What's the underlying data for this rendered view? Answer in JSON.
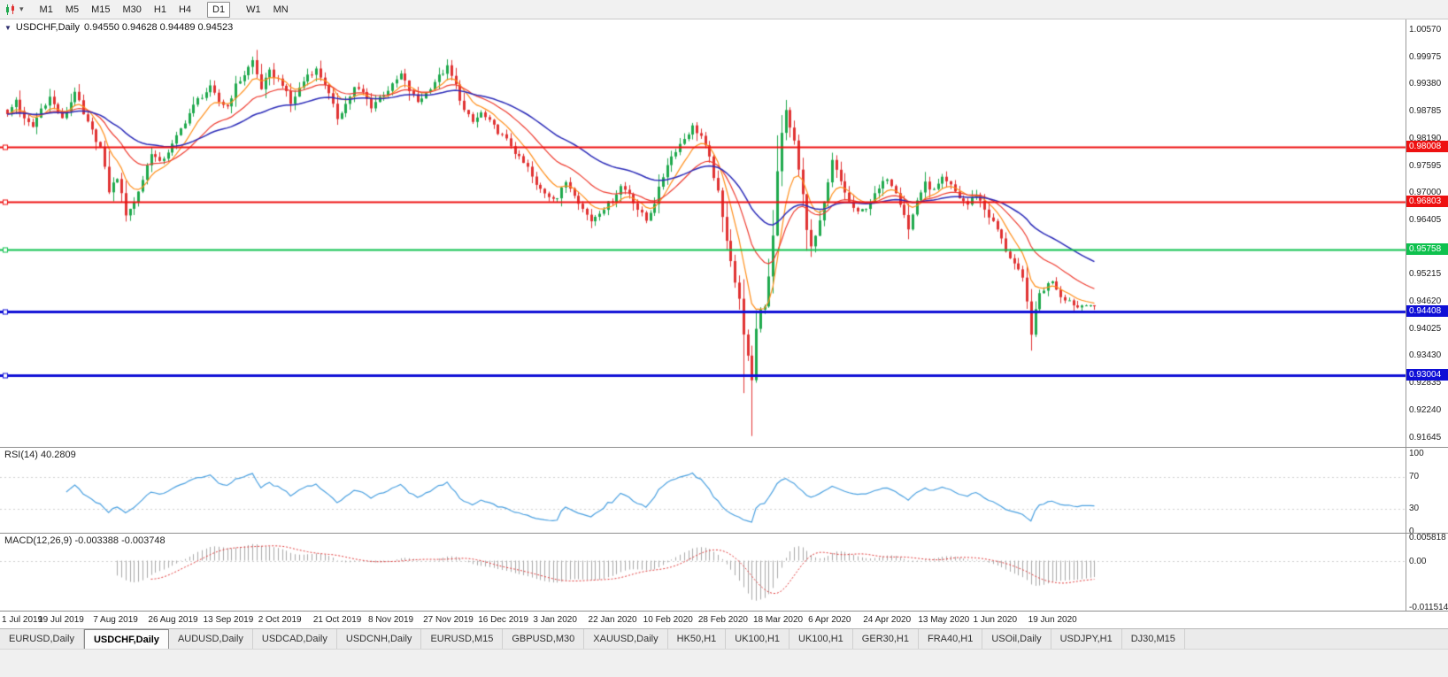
{
  "toolbar": {
    "timeframes": [
      "M1",
      "M5",
      "M15",
      "M30",
      "H1",
      "H4",
      "D1",
      "W1",
      "MN"
    ],
    "active_timeframe": "D1"
  },
  "chart": {
    "symbol": "USDCHF,Daily",
    "ohlc": "0.94550 0.94628 0.94489 0.94523"
  },
  "tabs": {
    "items": [
      "EURUSD,Daily",
      "USDCHF,Daily",
      "AUDUSD,Daily",
      "USDCAD,Daily",
      "USDCNH,Daily",
      "EURUSD,M15",
      "GBPUSD,M30",
      "XAUUSD,Daily",
      "HK50,H1",
      "UK100,H1",
      "UK100,H1",
      "GER30,H1",
      "FRA40,H1",
      "USOil,Daily",
      "USDJPY,H1",
      "DJ30,M15"
    ],
    "active_index": 1
  },
  "chart_data": {
    "type": "candlestick",
    "symbol": "USDCHF",
    "timeframe": "Daily",
    "last_ohlc": {
      "open": 0.9455,
      "high": 0.94628,
      "low": 0.94489,
      "close": 0.94523
    },
    "n_candles": 258,
    "candles_per_tick": 13,
    "x_tick_labels": [
      "1 Jul 2019",
      "19 Jul 2019",
      "7 Aug 2019",
      "26 Aug 2019",
      "13 Sep 2019",
      "2 Oct 2019",
      "21 Oct 2019",
      "8 Nov 2019",
      "27 Nov 2019",
      "16 Dec 2019",
      "3 Jan 2020",
      "22 Jan 2020",
      "10 Feb 2020",
      "28 Feb 2020",
      "18 Mar 2020",
      "6 Apr 2020",
      "24 Apr 2020",
      "13 May 2020",
      "1 Jun 2020",
      "19 Jun 2020"
    ],
    "y_axis": {
      "top_value": 1.0057,
      "step": 0.00595,
      "labels": [
        "1.00570",
        "0.99975",
        "0.99380",
        "0.98785",
        "0.98190",
        "0.97595",
        "0.97000",
        "0.96405",
        "0.95810",
        "0.95215",
        "0.94620",
        "0.94025",
        "0.93430",
        "0.92835",
        "0.92240",
        "0.91645"
      ]
    },
    "up_color": "#1fa94d",
    "down_color": "#e03232",
    "close_anchors": [
      [
        0,
        0.987
      ],
      [
        2,
        0.9905
      ],
      [
        4,
        0.986
      ],
      [
        6,
        0.9845
      ],
      [
        8,
        0.9885
      ],
      [
        10,
        0.991
      ],
      [
        13,
        0.986
      ],
      [
        15,
        0.99
      ],
      [
        16,
        0.9925
      ],
      [
        18,
        0.987
      ],
      [
        20,
        0.9835
      ],
      [
        22,
        0.98
      ],
      [
        24,
        0.9705
      ],
      [
        26,
        0.9735
      ],
      [
        28,
        0.9655
      ],
      [
        30,
        0.968
      ],
      [
        32,
        0.973
      ],
      [
        34,
        0.979
      ],
      [
        36,
        0.9765
      ],
      [
        39,
        0.9805
      ],
      [
        41,
        0.984
      ],
      [
        43,
        0.9875
      ],
      [
        45,
        0.9905
      ],
      [
        48,
        0.993
      ],
      [
        50,
        0.99
      ],
      [
        52,
        0.989
      ],
      [
        54,
        0.9935
      ],
      [
        56,
        0.996
      ],
      [
        58,
        0.999
      ],
      [
        60,
        0.993
      ],
      [
        62,
        0.9965
      ],
      [
        65,
        0.994
      ],
      [
        67,
        0.9895
      ],
      [
        69,
        0.993
      ],
      [
        71,
        0.996
      ],
      [
        73,
        0.997
      ],
      [
        75,
        0.994
      ],
      [
        78,
        0.9865
      ],
      [
        80,
        0.9895
      ],
      [
        82,
        0.993
      ],
      [
        84,
        0.992
      ],
      [
        86,
        0.989
      ],
      [
        88,
        0.991
      ],
      [
        91,
        0.9935
      ],
      [
        93,
        0.996
      ],
      [
        95,
        0.9925
      ],
      [
        97,
        0.99
      ],
      [
        99,
        0.992
      ],
      [
        101,
        0.9945
      ],
      [
        104,
        0.9975
      ],
      [
        106,
        0.9935
      ],
      [
        108,
        0.988
      ],
      [
        110,
        0.9855
      ],
      [
        112,
        0.9875
      ],
      [
        114,
        0.9855
      ],
      [
        117,
        0.9825
      ],
      [
        119,
        0.9805
      ],
      [
        121,
        0.9775
      ],
      [
        123,
        0.9755
      ],
      [
        125,
        0.9715
      ],
      [
        128,
        0.9695
      ],
      [
        130,
        0.969
      ],
      [
        132,
        0.9725
      ],
      [
        134,
        0.97
      ],
      [
        136,
        0.9665
      ],
      [
        138,
        0.964
      ],
      [
        140,
        0.966
      ],
      [
        143,
        0.9685
      ],
      [
        145,
        0.9715
      ],
      [
        147,
        0.97
      ],
      [
        149,
        0.9665
      ],
      [
        151,
        0.964
      ],
      [
        153,
        0.968
      ],
      [
        156,
        0.9765
      ],
      [
        158,
        0.9795
      ],
      [
        160,
        0.982
      ],
      [
        162,
        0.9845
      ],
      [
        164,
        0.9825
      ],
      [
        166,
        0.9775
      ],
      [
        168,
        0.97
      ],
      [
        169,
        0.9645
      ],
      [
        170,
        0.96
      ],
      [
        171,
        0.9555
      ],
      [
        172,
        0.9505
      ],
      [
        173,
        0.9465
      ],
      [
        174,
        0.9395
      ],
      [
        175,
        0.934
      ],
      [
        176,
        0.9285
      ],
      [
        177,
        0.9405
      ],
      [
        178,
        0.9445
      ],
      [
        179,
        0.9455
      ],
      [
        180,
        0.952
      ],
      [
        181,
        0.961
      ],
      [
        182,
        0.9745
      ],
      [
        183,
        0.983
      ],
      [
        184,
        0.9885
      ],
      [
        185,
        0.984
      ],
      [
        186,
        0.9815
      ],
      [
        187,
        0.975
      ],
      [
        188,
        0.9695
      ],
      [
        189,
        0.9625
      ],
      [
        190,
        0.958
      ],
      [
        191,
        0.9605
      ],
      [
        192,
        0.9635
      ],
      [
        194,
        0.972
      ],
      [
        195,
        0.977
      ],
      [
        197,
        0.9725
      ],
      [
        199,
        0.968
      ],
      [
        201,
        0.9655
      ],
      [
        203,
        0.967
      ],
      [
        205,
        0.9695
      ],
      [
        208,
        0.9735
      ],
      [
        210,
        0.9705
      ],
      [
        212,
        0.9655
      ],
      [
        213,
        0.962
      ],
      [
        215,
        0.9685
      ],
      [
        217,
        0.972
      ],
      [
        219,
        0.9705
      ],
      [
        221,
        0.973
      ],
      [
        223,
        0.9715
      ],
      [
        225,
        0.969
      ],
      [
        227,
        0.9675
      ],
      [
        229,
        0.97
      ],
      [
        231,
        0.9665
      ],
      [
        233,
        0.9635
      ],
      [
        234,
        0.962
      ],
      [
        236,
        0.9575
      ],
      [
        238,
        0.9545
      ],
      [
        240,
        0.951
      ],
      [
        241,
        0.946
      ],
      [
        242,
        0.9395
      ],
      [
        243,
        0.944
      ],
      [
        244,
        0.948
      ],
      [
        246,
        0.95
      ],
      [
        247,
        0.951
      ],
      [
        249,
        0.9475
      ],
      [
        251,
        0.9465
      ],
      [
        253,
        0.945
      ],
      [
        255,
        0.946
      ],
      [
        257,
        0.9452
      ]
    ],
    "wick_overrides": [
      {
        "i": 58,
        "high": 0.9999
      },
      {
        "i": 104,
        "high": 0.9993
      },
      {
        "i": 174,
        "low": 0.9262
      },
      {
        "i": 176,
        "low": 0.9168
      },
      {
        "i": 184,
        "high": 0.9904
      },
      {
        "i": 242,
        "low": 0.9355
      }
    ],
    "moving_averages": [
      {
        "name": "fast-ma",
        "period": 8,
        "color": "#ff8e1a",
        "width": 1.2
      },
      {
        "name": "medium-ma",
        "period": 20,
        "color": "#ee3b2f",
        "width": 1.2
      },
      {
        "name": "slow-ma",
        "period": 44,
        "color": "#2b2bb8",
        "width": 1.5
      }
    ],
    "horizontal_levels": [
      {
        "label": "0.98008",
        "price": 0.98008,
        "color": "#ee1111",
        "width": 2
      },
      {
        "label": "0.96803",
        "price": 0.96803,
        "color": "#ee1111",
        "width": 2
      },
      {
        "label": "0.95758",
        "price": 0.95758,
        "color": "#0ec14e",
        "width": 2
      },
      {
        "label": "0.94408",
        "price": 0.94408,
        "color": "#0f0fd6",
        "width": 3
      },
      {
        "label": "0.93004",
        "price": 0.93004,
        "color": "#0f0fd6",
        "width": 3
      }
    ],
    "rsi": {
      "label": "RSI(14)",
      "value": "40.2809",
      "period": 14,
      "color": "#4aa0e0",
      "guide_levels": [
        70,
        30
      ],
      "scale": [
        {
          "label": "100",
          "value": 100
        },
        {
          "label": "70",
          "value": 70
        },
        {
          "label": "30",
          "value": 30
        },
        {
          "label": "0",
          "value": 0
        }
      ]
    },
    "macd": {
      "label": "MACD(12,26,9)",
      "values": "-0.003388 -0.003748",
      "fast": 12,
      "slow": 26,
      "signal": 9,
      "hist_color": "#a9a9a9",
      "signal_color": "#e03a3a",
      "scale": [
        {
          "label": "0.005818",
          "value": 0.005818
        },
        {
          "label": "0.00",
          "value": 0
        },
        {
          "label": "-0.011514",
          "value": -0.011514
        }
      ]
    }
  }
}
